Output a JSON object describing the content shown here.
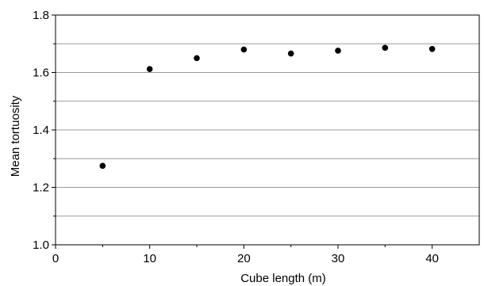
{
  "chart_data": {
    "type": "scatter",
    "title": "",
    "xlabel": "Cube length (m)",
    "ylabel": "Mean tortuosity",
    "xlim": [
      0,
      45
    ],
    "ylim": [
      1.0,
      1.8
    ],
    "x_ticks": [
      0,
      10,
      20,
      30,
      40
    ],
    "x_tick_labels": [
      "0",
      "10",
      "20",
      "30",
      "40"
    ],
    "y_ticks": [
      1.0,
      1.2,
      1.4,
      1.6,
      1.8
    ],
    "y_tick_labels": [
      "1.0",
      "1.2",
      "1.4",
      "1.6",
      "1.8"
    ],
    "y_gridlines": [
      1.1,
      1.2,
      1.3,
      1.4,
      1.5,
      1.6,
      1.7
    ],
    "grid": "horizontal",
    "legend": "none",
    "series": [
      {
        "x": [
          5,
          10,
          15,
          20,
          25,
          30,
          35,
          40
        ],
        "y": [
          1.275,
          1.612,
          1.65,
          1.68,
          1.666,
          1.676,
          1.686,
          1.682
        ]
      }
    ],
    "colors": {
      "points": "#000000",
      "grid": "#9a9a9a",
      "axes": "#000000"
    }
  }
}
